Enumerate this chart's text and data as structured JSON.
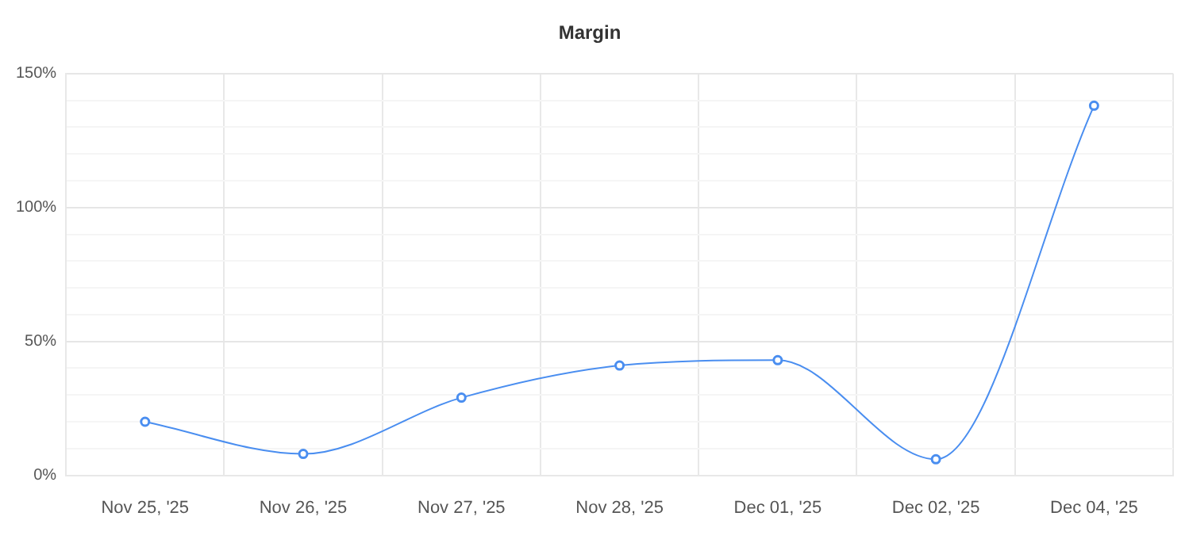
{
  "chart_data": {
    "type": "line",
    "title": "Margin",
    "categories": [
      "Nov 25, '25",
      "Nov 26, '25",
      "Nov 27, '25",
      "Nov 28, '25",
      "Dec 01, '25",
      "Dec 02, '25",
      "Dec 04, '25"
    ],
    "series": [
      {
        "color": "#4a8ef0",
        "values": [
          20,
          8,
          29,
          41,
          43,
          6,
          138
        ]
      }
    ],
    "ylim": [
      0,
      150
    ],
    "yticks": [
      {
        "value": 0,
        "label": "0%"
      },
      {
        "value": 10,
        "label": null
      },
      {
        "value": 20,
        "label": null
      },
      {
        "value": 30,
        "label": null
      },
      {
        "value": 40,
        "label": null
      },
      {
        "value": 50,
        "label": "50%"
      },
      {
        "value": 60,
        "label": null
      },
      {
        "value": 70,
        "label": null
      },
      {
        "value": 80,
        "label": null
      },
      {
        "value": 90,
        "label": null
      },
      {
        "value": 100,
        "label": "100%"
      },
      {
        "value": 110,
        "label": null
      },
      {
        "value": 120,
        "label": null
      },
      {
        "value": 130,
        "label": null
      },
      {
        "value": 140,
        "label": null
      },
      {
        "value": 150,
        "label": "150%"
      }
    ],
    "grid": true,
    "legend": false,
    "marker": "circle",
    "line_style": "solid"
  }
}
